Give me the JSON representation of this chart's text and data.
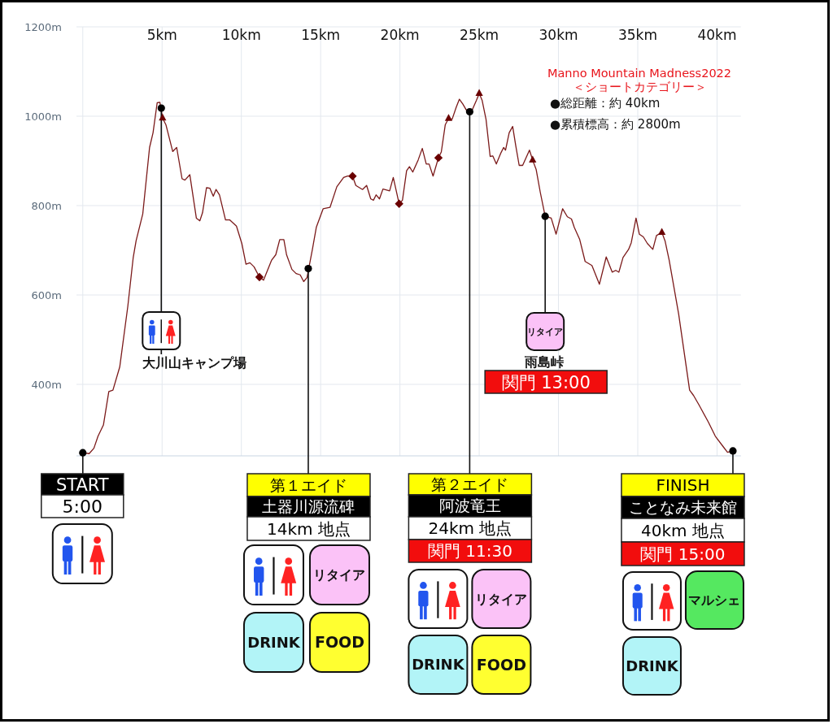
{
  "chart_data": {
    "type": "line",
    "title": "Manno Mountain Madness2022",
    "subtitle": "＜ショートカテゴリー＞",
    "xlim": [
      -0.4,
      41.5
    ],
    "xticks": [
      {
        "value": 0,
        "label": null
      },
      {
        "value": 5,
        "label": "5km"
      },
      {
        "value": 10,
        "label": "10km"
      },
      {
        "value": 15,
        "label": "15km"
      },
      {
        "value": 20,
        "label": "20km"
      },
      {
        "value": 25,
        "label": "25km"
      },
      {
        "value": 30,
        "label": "30km"
      },
      {
        "value": 35,
        "label": "35km"
      },
      {
        "value": 40,
        "label": "40km"
      }
    ],
    "ylim": [
      240,
      1200
    ],
    "yticks": [
      {
        "value": 400,
        "label": "400m"
      },
      {
        "value": 600,
        "label": "600m"
      },
      {
        "value": 800,
        "label": "800m"
      },
      {
        "value": 1000,
        "label": "1000m"
      },
      {
        "value": 1200,
        "label": "1200m"
      }
    ],
    "grid": true,
    "series": [
      {
        "color": "#7b1a1a",
        "x": [
          0,
          0.4,
          0.7,
          0.96,
          1.3,
          1.64,
          1.9,
          2.33,
          2.84,
          3.18,
          3.36,
          3.78,
          4.21,
          4.43,
          4.69,
          4.86,
          5.03,
          5.24,
          5.67,
          5.92,
          6.26,
          6.44,
          6.75,
          7.16,
          7.38,
          7.55,
          7.8,
          8.01,
          8.23,
          8.4,
          8.62,
          9.0,
          9.26,
          9.69,
          10.03,
          10.29,
          10.54,
          10.8,
          11.14,
          11.4,
          11.91,
          12.17,
          12.42,
          12.68,
          12.85,
          13.19,
          13.45,
          13.71,
          13.93,
          14.14,
          14.48,
          14.73,
          15.16,
          15.59,
          16.02,
          16.45,
          16.7,
          17.01,
          17.22,
          17.64,
          17.9,
          18.16,
          18.33,
          18.5,
          18.71,
          18.93,
          19.35,
          19.58,
          19.95,
          20.16,
          20.42,
          20.6,
          20.81,
          21.15,
          21.41,
          21.66,
          21.84,
          22.09,
          22.43,
          22.61,
          22.86,
          23.07,
          23.29,
          23.55,
          23.75,
          23.97,
          24.2,
          24.57,
          24.83,
          25.0,
          25.18,
          25.43,
          25.69,
          25.86,
          26.08,
          26.37,
          26.54,
          26.66,
          26.89,
          27.11,
          27.31,
          27.52,
          27.74,
          28.17,
          28.37,
          28.59,
          28.85,
          29.16,
          29.54,
          29.85,
          30.26,
          30.56,
          30.82,
          31.0,
          31.34,
          31.68,
          32.11,
          32.58,
          33.01,
          33.39,
          33.61,
          33.81,
          34.07,
          34.42,
          34.59,
          34.89,
          35.1,
          35.35,
          35.61,
          35.95,
          36.18,
          36.52,
          36.72,
          36.98,
          37.58,
          38.27,
          38.52,
          38.86,
          39.46,
          39.89,
          40.4,
          40.66,
          41.0
        ],
        "values": [
          247,
          245,
          257,
          284,
          309,
          384,
          387,
          439,
          575,
          684,
          721,
          781,
          930,
          963,
          1030,
          1031,
          996,
          981,
          921,
          930,
          860,
          857,
          869,
          772,
          766,
          784,
          840,
          839,
          821,
          836,
          824,
          768,
          768,
          754,
          715,
          669,
          672,
          663,
          640,
          633,
          678,
          690,
          724,
          724,
          690,
          657,
          648,
          645,
          630,
          639,
          702,
          752,
          793,
          796,
          842,
          863,
          866,
          866,
          845,
          836,
          845,
          815,
          812,
          824,
          815,
          837,
          833,
          863,
          804,
          812,
          878,
          887,
          875,
          902,
          928,
          893,
          893,
          866,
          907,
          920,
          981,
          995,
          993,
          1020,
          1038,
          1027,
          1013,
          1015,
          1036,
          1051,
          1036,
          993,
          910,
          911,
          893,
          918,
          930,
          924,
          963,
          977,
          933,
          890,
          890,
          924,
          902,
          881,
          830,
          776,
          772,
          736,
          793,
          775,
          770,
          751,
          724,
          675,
          666,
          624,
          685,
          651,
          655,
          651,
          684,
          702,
          717,
          772,
          736,
          730,
          715,
          702,
          733,
          740,
          721,
          678,
          557,
          387,
          375,
          354,
          315,
          284,
          260,
          248,
          251
        ]
      },
      {
        "type": "scatter",
        "marker": "triangle",
        "color": "#6a0000",
        "x": [
          5.03,
          23.07,
          25.0,
          28.37,
          36.52
        ],
        "values": [
          996,
          995,
          1051,
          902,
          740
        ]
      },
      {
        "type": "scatter",
        "marker": "diamond",
        "color": "#6a0000",
        "x": [
          11.14,
          17.01,
          19.95,
          22.43
        ],
        "values": [
          640,
          866,
          804,
          907
        ]
      },
      {
        "type": "scatter",
        "marker": "circle",
        "color": "#000000",
        "x": [
          0,
          4.95,
          14.22,
          24.4,
          29.16,
          41.0
        ],
        "values": [
          247,
          1018,
          659,
          1010,
          776,
          251
        ]
      }
    ],
    "annotations": [
      "●総距離：約 40km",
      "●累積標高：約 2800m",
      {
        "text": "START",
        "x": 0,
        "y": 247
      },
      "5:00",
      {
        "text": "大川山キャンプ場",
        "x": 4.95,
        "y": 1018
      },
      {
        "text": "第１エイド",
        "x": 14.22,
        "y": 659
      },
      "土器川源流碑",
      "14km 地点",
      "リタイア",
      "DRINK",
      "FOOD",
      {
        "text": "第２エイド",
        "x": 24.4,
        "y": 1010
      },
      "阿波竜王",
      "24km 地点",
      "関門 11:30",
      "リタイア",
      "DRINK",
      "FOOD",
      {
        "text": "リタイア",
        "x": 29.16,
        "y": 776
      },
      "雨島峠",
      "関門 13:00",
      {
        "text": "FINISH",
        "x": 41.0,
        "y": 251
      },
      "ことなみ未来館",
      "40km 地点",
      "関門 15:00",
      "マルシェ",
      "DRINK"
    ]
  }
}
